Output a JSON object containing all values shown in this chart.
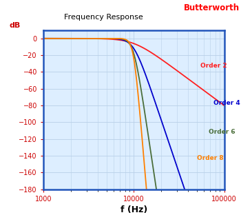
{
  "title": "Frequency Response",
  "title_color": "#000000",
  "butterworth_label": "Butterworth",
  "butterworth_label_color": "#ff0000",
  "xlabel": "f (Hz)",
  "ylabel": "dB",
  "xlim": [
    1000,
    100000
  ],
  "ylim": [
    -180,
    10
  ],
  "yticks": [
    0,
    -20,
    -40,
    -60,
    -80,
    -100,
    -120,
    -140,
    -160,
    -180
  ],
  "fc": 10000,
  "orders": [
    2,
    4,
    6,
    8
  ],
  "order_colors": [
    "#ff2020",
    "#0000cc",
    "#4a6e3a",
    "#ff8000"
  ],
  "order_labels": [
    "Order 2",
    "Order 4",
    "Order 6",
    "Order 8"
  ],
  "background_color": "#ddeeff",
  "grid_color": "#b8d0e8",
  "axis_color": "#2255bb",
  "tick_color": "#cc0000",
  "xlabel_color": "#000000",
  "ylabel_color": "#cc0000",
  "fig_background": "#ffffff",
  "line_width": 1.3
}
